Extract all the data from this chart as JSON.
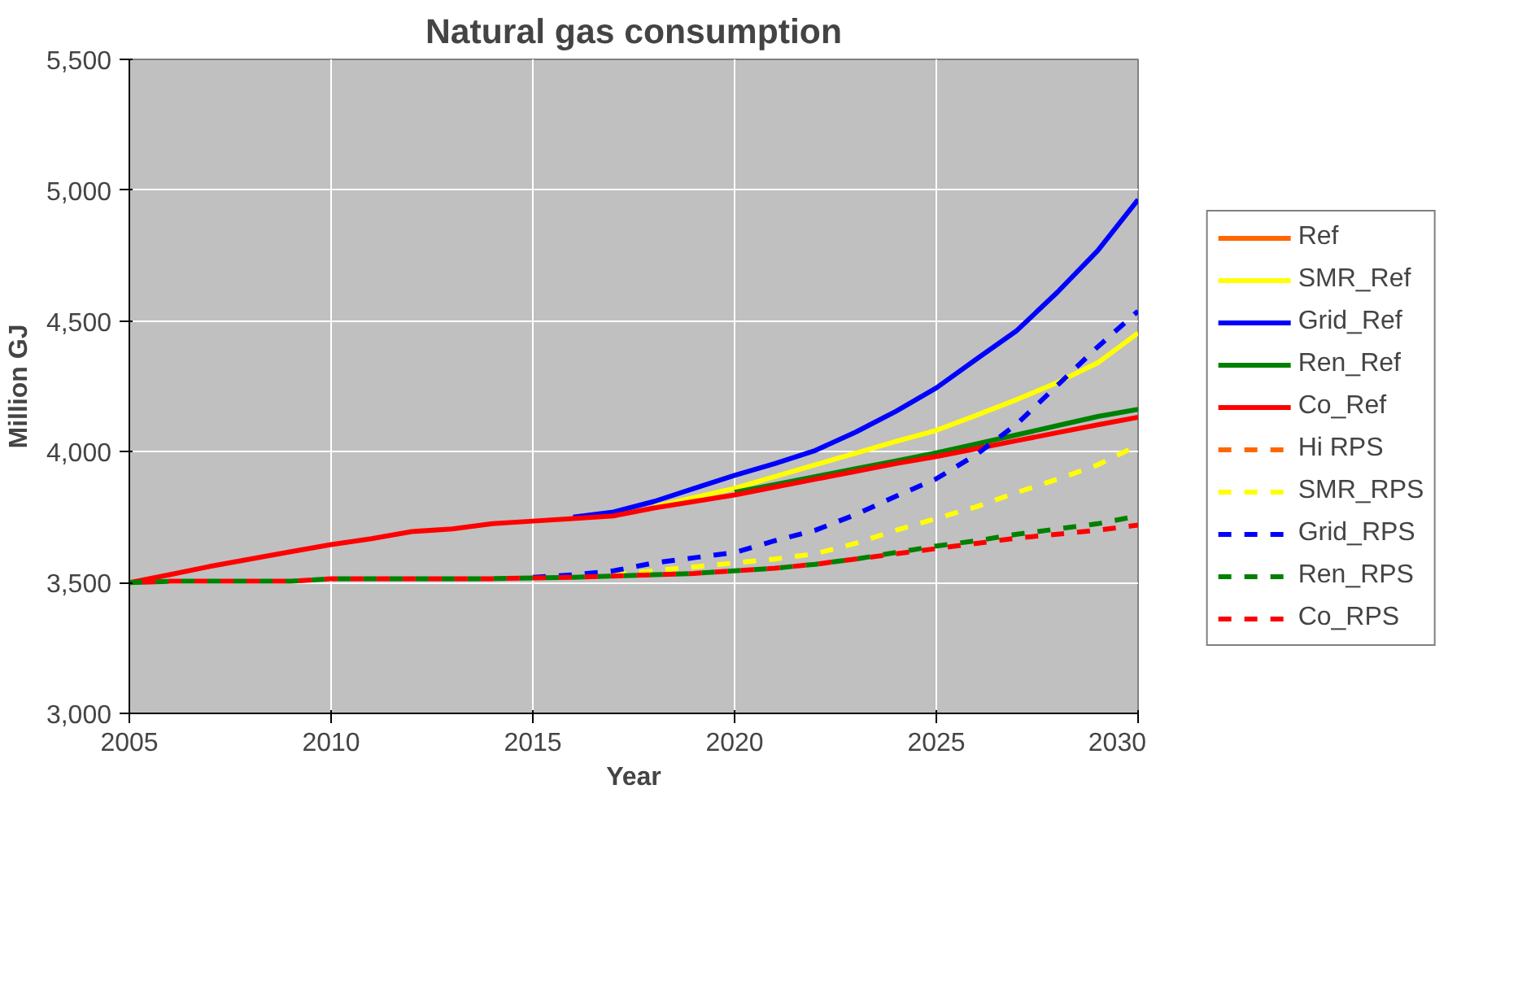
{
  "chart_data": {
    "type": "line",
    "title": "Natural gas consumption",
    "xlabel": "Year",
    "ylabel": "Million GJ",
    "x": [
      2005,
      2006,
      2007,
      2008,
      2009,
      2010,
      2011,
      2012,
      2013,
      2014,
      2015,
      2016,
      2017,
      2018,
      2019,
      2020,
      2021,
      2022,
      2023,
      2024,
      2025,
      2026,
      2027,
      2028,
      2029,
      2030
    ],
    "xlim": [
      2005,
      2030
    ],
    "xticks": [
      2005,
      2010,
      2015,
      2020,
      2025,
      2030
    ],
    "ylim": [
      3000,
      5500
    ],
    "yticks": [
      {
        "value": 3000,
        "label": "3,000"
      },
      {
        "value": 3500,
        "label": "3,500"
      },
      {
        "value": 4000,
        "label": "4,000"
      },
      {
        "value": 4500,
        "label": "4,500"
      },
      {
        "value": 5000,
        "label": "5,000"
      },
      {
        "value": 5500,
        "label": "5,500"
      }
    ],
    "grid": true,
    "legend": "right",
    "series": [
      {
        "name": "Ref",
        "color": "#ff6600",
        "line_style": "solid",
        "values": [
          null,
          null,
          null,
          null,
          null,
          null,
          null,
          null,
          null,
          null,
          null,
          null,
          null,
          null,
          null,
          null,
          null,
          null,
          null,
          null,
          null,
          null,
          null,
          null,
          null,
          null
        ]
      },
      {
        "name": "SMR_Ref",
        "color": "#ffff00",
        "line_style": "solid",
        "values": [
          null,
          null,
          null,
          null,
          null,
          null,
          null,
          null,
          null,
          null,
          null,
          null,
          null,
          3790,
          3825,
          3860,
          3905,
          3950,
          3995,
          4040,
          4082,
          4140,
          4200,
          4265,
          4340,
          4454
        ]
      },
      {
        "name": "Grid_Ref",
        "color": "#0000ff",
        "line_style": "solid",
        "values": [
          null,
          null,
          null,
          null,
          null,
          null,
          null,
          null,
          null,
          null,
          null,
          3750,
          3770,
          3810,
          3860,
          3910,
          3955,
          4005,
          4075,
          4155,
          4244,
          4355,
          4464,
          4610,
          4769,
          4964
        ]
      },
      {
        "name": "Ren_Ref",
        "color": "#008000",
        "line_style": "solid",
        "values": [
          null,
          null,
          null,
          null,
          null,
          null,
          null,
          null,
          null,
          null,
          null,
          null,
          null,
          null,
          null,
          3845,
          3875,
          3905,
          3935,
          3965,
          3996,
          4030,
          4065,
          4100,
          4135,
          4162
        ]
      },
      {
        "name": "Co_Ref",
        "color": "#ff0000",
        "line_style": "solid",
        "values": [
          3500,
          3530,
          3562,
          3590,
          3618,
          3645,
          3668,
          3695,
          3705,
          3725,
          3735,
          3745,
          3755,
          3785,
          3810,
          3835,
          3865,
          3895,
          3925,
          3955,
          3982,
          4012,
          4043,
          4073,
          4103,
          4132
        ]
      },
      {
        "name": "Hi RPS",
        "color": "#ff6600",
        "line_style": "dashed",
        "values": [
          null,
          null,
          null,
          null,
          null,
          null,
          null,
          null,
          null,
          null,
          null,
          null,
          null,
          null,
          null,
          null,
          null,
          null,
          null,
          null,
          null,
          null,
          null,
          null,
          null,
          null
        ]
      },
      {
        "name": "SMR_RPS",
        "color": "#ffff00",
        "line_style": "dashed",
        "values": [
          null,
          null,
          null,
          null,
          null,
          null,
          null,
          null,
          null,
          null,
          null,
          null,
          3530,
          3545,
          3560,
          3575,
          3590,
          3610,
          3650,
          3700,
          3745,
          3790,
          3845,
          3895,
          3950,
          4025
        ]
      },
      {
        "name": "Grid_RPS",
        "color": "#0000ff",
        "line_style": "dashed",
        "values": [
          null,
          null,
          null,
          null,
          null,
          null,
          null,
          null,
          null,
          null,
          3520,
          3530,
          3545,
          3575,
          3595,
          3615,
          3660,
          3700,
          3760,
          3830,
          3897,
          3990,
          4107,
          4254,
          4401,
          4538
        ]
      },
      {
        "name": "Ren_RPS",
        "color": "#008000",
        "line_style": "dashed",
        "values": [
          3500,
          3505,
          3505,
          3505,
          3505,
          3515,
          3515,
          3515,
          3515,
          3515,
          3518,
          3520,
          3525,
          3530,
          3535,
          3545,
          3555,
          3570,
          3590,
          3615,
          3640,
          3660,
          3685,
          3705,
          3725,
          3755
        ]
      },
      {
        "name": "Co_RPS",
        "color": "#ff0000",
        "line_style": "dashed",
        "values": [
          3500,
          3505,
          3505,
          3505,
          3505,
          3515,
          3515,
          3515,
          3515,
          3515,
          3518,
          3520,
          3525,
          3530,
          3535,
          3545,
          3555,
          3570,
          3590,
          3610,
          3630,
          3650,
          3670,
          3685,
          3700,
          3720
        ]
      }
    ]
  }
}
